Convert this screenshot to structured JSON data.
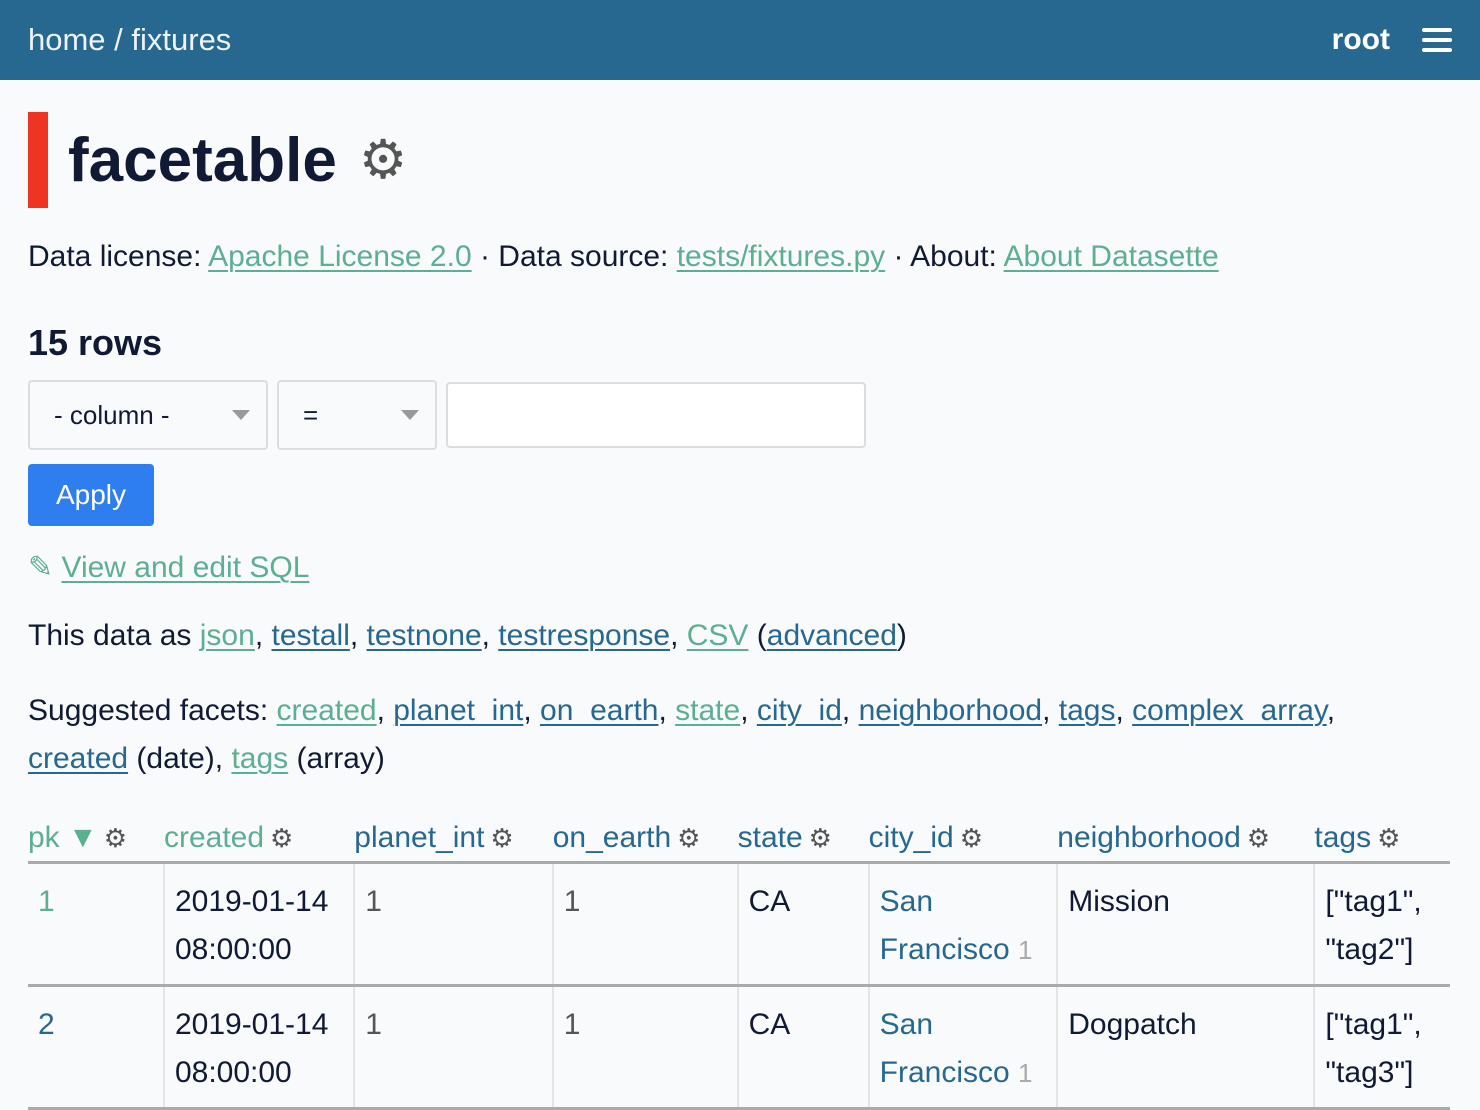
{
  "header": {
    "breadcrumb_home": "home",
    "breadcrumb_sep": " / ",
    "breadcrumb_db": "fixtures",
    "user": "root"
  },
  "title": "facetable",
  "meta": {
    "license_label": "Data license: ",
    "license": "Apache License 2.0",
    "source_label": " · Data source: ",
    "source": "tests/fixtures.py",
    "about_label": " · About: ",
    "about": "About Datasette"
  },
  "row_count": "15 rows",
  "filter": {
    "column": "- column -",
    "op": "=",
    "value": "",
    "apply": "Apply"
  },
  "sql_icon": "✎",
  "sql_link": "View and edit SQL",
  "export": {
    "prefix": "This data as ",
    "json": "json",
    "testall": "testall",
    "testnone": "testnone",
    "testresponse": "testresponse",
    "csv": "CSV",
    "advanced": "advanced"
  },
  "facets": {
    "label": "Suggested facets: ",
    "items": [
      "created",
      "planet_int",
      "on_earth",
      "state",
      "city_id",
      "neighborhood",
      "tags",
      "complex_array",
      "created",
      "tags"
    ],
    "date": " (date)",
    "array": " (array)"
  },
  "columns": [
    "pk",
    "created",
    "planet_int",
    "on_earth",
    "state",
    "city_id",
    "neighborhood",
    "tags"
  ],
  "sort_icon": "▼",
  "rows": [
    {
      "pk": "1",
      "created": [
        "2019-01-14",
        "08:00:00"
      ],
      "planet_int": "1",
      "on_earth": "1",
      "state": "CA",
      "city": [
        "San",
        "Francisco"
      ],
      "city_id": "1",
      "neighborhood": "Mission",
      "tags": [
        "[\"tag1\",",
        "\"tag2\"]"
      ]
    },
    {
      "pk": "2",
      "created": [
        "2019-01-14",
        "08:00:00"
      ],
      "planet_int": "1",
      "on_earth": "1",
      "state": "CA",
      "city": [
        "San",
        "Francisco"
      ],
      "city_id": "1",
      "neighborhood": "Dogpatch",
      "tags": [
        "[\"tag1\",",
        "\"tag3\"]"
      ]
    }
  ],
  "colors": {
    "header": "#276890",
    "visited_link": "#5caf8f",
    "link": "#276890",
    "accent": "#ee3524",
    "button": "#2e7eef"
  }
}
